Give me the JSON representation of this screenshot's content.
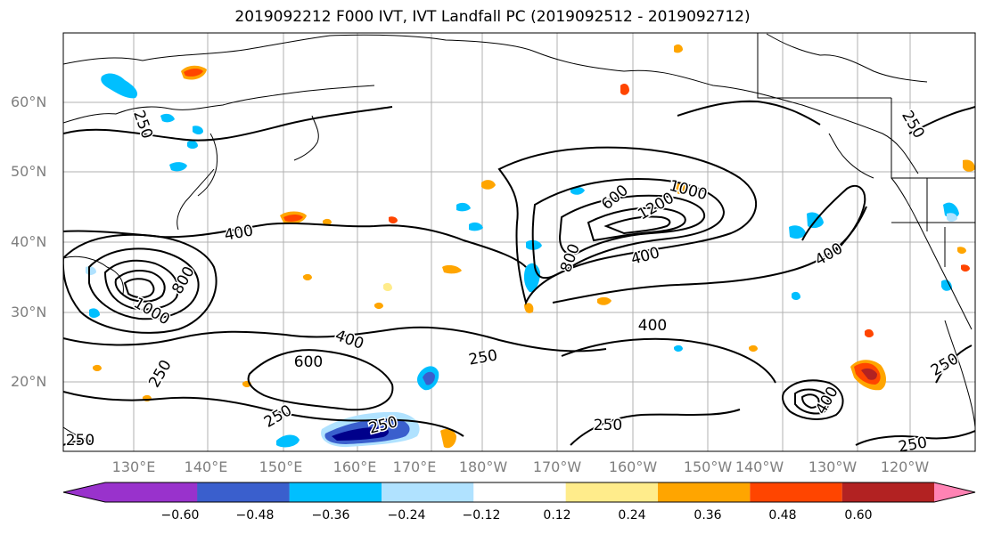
{
  "title": "2019092212 F000 IVT, IVT Landfall PC (2019092512 - 2019092712)",
  "lat_labels": [
    "60°N",
    "50°N",
    "40°N",
    "30°N",
    "20°N"
  ],
  "lon_labels": [
    "130°E",
    "140°E",
    "150°E",
    "160°E",
    "170°E",
    "180°W",
    "170°W",
    "160°W",
    "150°W",
    "140°W",
    "130°W",
    "120°W"
  ],
  "contour_labels": [
    {
      "text": "250",
      "rot": 70
    },
    {
      "text": "400",
      "rot": -10
    },
    {
      "text": "1000",
      "rot": 30
    },
    {
      "text": "800",
      "rot": -60
    },
    {
      "text": "250",
      "rot": -15
    },
    {
      "text": "600",
      "rot": -40
    },
    {
      "text": "1000",
      "rot": 15
    },
    {
      "text": "1200",
      "rot": -30
    },
    {
      "text": "800",
      "rot": -70
    },
    {
      "text": "400",
      "rot": -15
    },
    {
      "text": "400",
      "rot": -30
    },
    {
      "text": "250",
      "rot": 60
    },
    {
      "text": "400",
      "rot": 20
    },
    {
      "text": "600",
      "rot": 0
    },
    {
      "text": "250",
      "rot": -10
    },
    {
      "text": "400",
      "rot": 0
    },
    {
      "text": "250",
      "rot": -30
    },
    {
      "text": "250",
      "rot": 0
    },
    {
      "text": "250",
      "rot": -30
    },
    {
      "text": "400",
      "rot": -60
    },
    {
      "text": "250",
      "rot": -10
    },
    {
      "text": "250",
      "rot": -60
    },
    {
      "text": "250",
      "rot": 0
    }
  ],
  "colorbar": {
    "colors": [
      "#9932cc",
      "#00008b",
      "#3a5fcd",
      "#00bfff",
      "#b0e2ff",
      "#ffffff",
      "#ffec8b",
      "#ffa500",
      "#ff4500",
      "#b22222",
      "#ff83b4"
    ],
    "ticks": [
      "−0.60",
      "−0.48",
      "−0.36",
      "−0.24",
      "−0.12",
      "0.12",
      "0.24",
      "0.36",
      "0.48",
      "0.60"
    ]
  }
}
